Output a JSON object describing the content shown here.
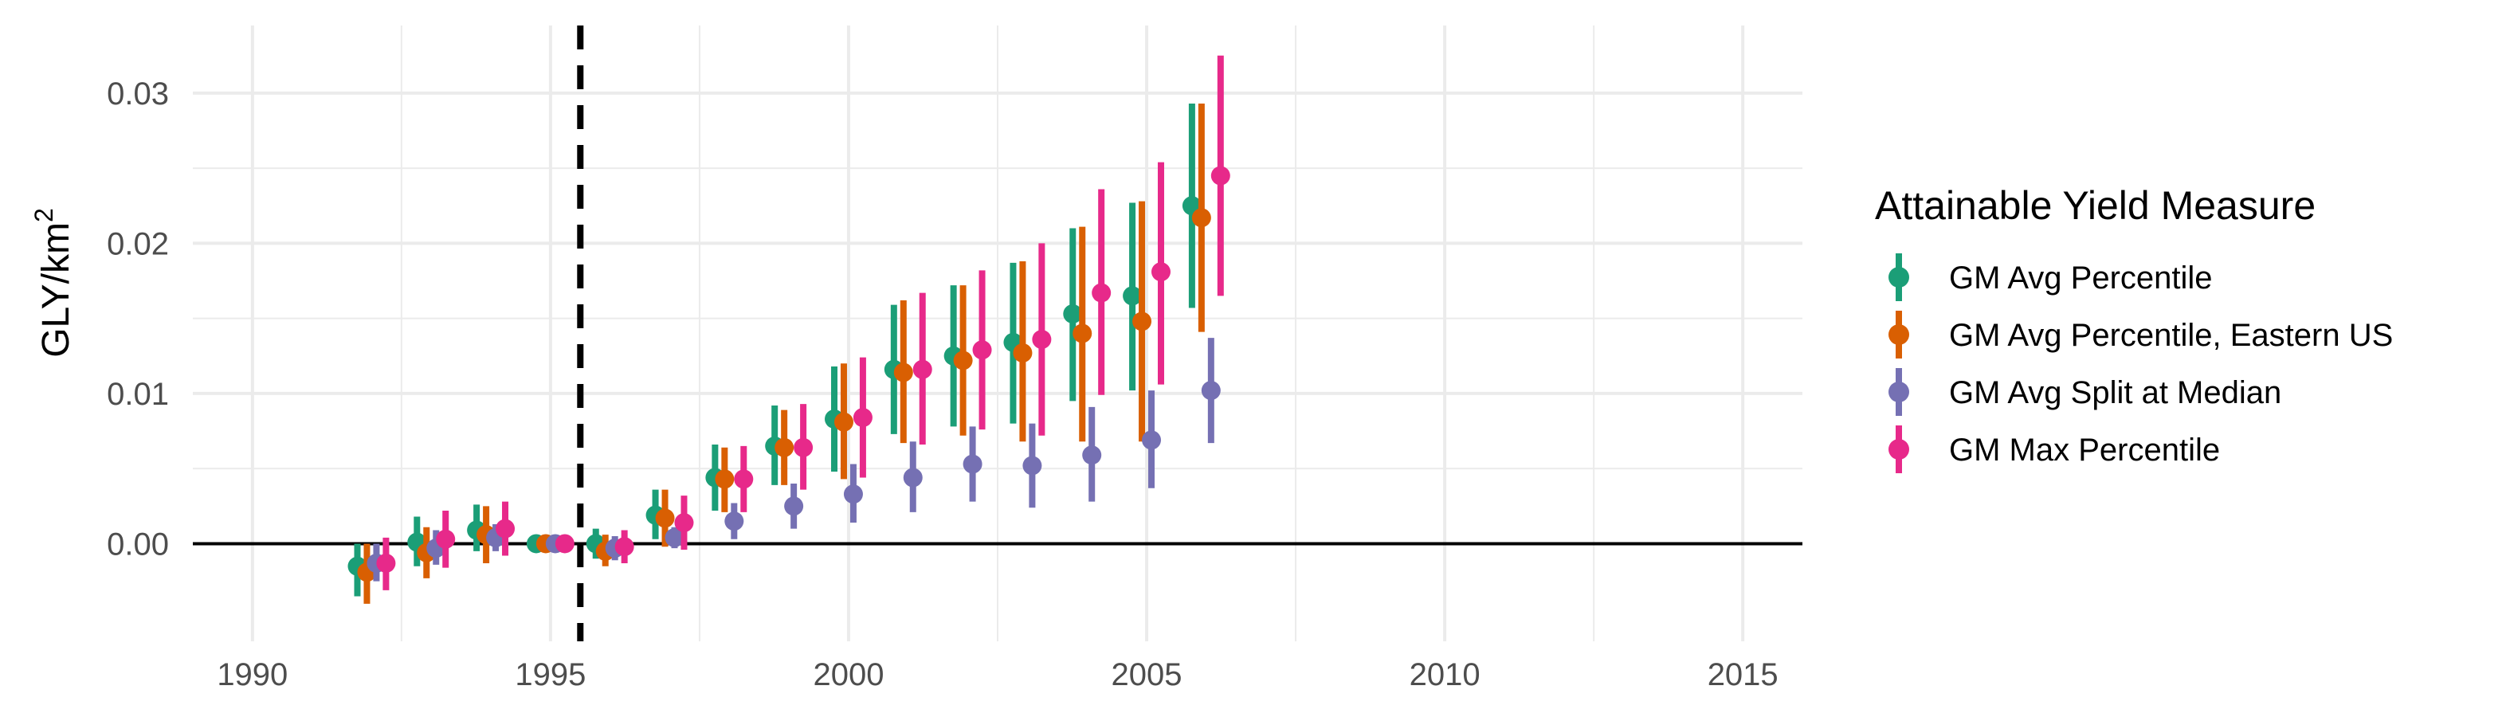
{
  "chart_data": {
    "type": "scatter",
    "subtype": "point-range",
    "xlabel": "",
    "ylabel": "GLY/km",
    "ylabel_superscript": "2",
    "xlim": [
      1989,
      2016
    ],
    "ylim": [
      -0.0065,
      0.0345
    ],
    "x_ticks": [
      1990,
      1995,
      2000,
      2005,
      2010,
      2015
    ],
    "y_ticks": [
      0.0,
      0.01,
      0.02,
      0.03
    ],
    "y_tick_labels": [
      "0.00",
      "0.01",
      "0.02",
      "0.03"
    ],
    "grid": true,
    "reference_lines": {
      "horizontal_zero": 0,
      "vertical_dashed_x": 1995.5
    },
    "legend": {
      "title": "Attainable Yield Measure",
      "position": "right"
    },
    "dodge_offsets": [
      -0.24,
      -0.08,
      0.08,
      0.24
    ],
    "series": [
      {
        "name": "GM Avg Percentile",
        "color": "#1B9E77",
        "points": [
          {
            "x": 1992,
            "y": -0.0015,
            "lo": -0.0035,
            "hi": 0.0
          },
          {
            "x": 1993,
            "y": 0.0001,
            "lo": -0.0015,
            "hi": 0.0018
          },
          {
            "x": 1994,
            "y": 0.0009,
            "lo": -0.0005,
            "hi": 0.0026
          },
          {
            "x": 1995,
            "y": 0.0,
            "lo": 0.0,
            "hi": 0.0
          },
          {
            "x": 1996,
            "y": 0.0,
            "lo": -0.001,
            "hi": 0.001
          },
          {
            "x": 1997,
            "y": 0.0019,
            "lo": 0.0003,
            "hi": 0.0036
          },
          {
            "x": 1998,
            "y": 0.0044,
            "lo": 0.0022,
            "hi": 0.0066
          },
          {
            "x": 1999,
            "y": 0.0065,
            "lo": 0.0039,
            "hi": 0.0092
          },
          {
            "x": 2000,
            "y": 0.0083,
            "lo": 0.0048,
            "hi": 0.0118
          },
          {
            "x": 2001,
            "y": 0.0116,
            "lo": 0.0073,
            "hi": 0.0159
          },
          {
            "x": 2002,
            "y": 0.0125,
            "lo": 0.0078,
            "hi": 0.0172
          },
          {
            "x": 2003,
            "y": 0.0134,
            "lo": 0.008,
            "hi": 0.0187
          },
          {
            "x": 2004,
            "y": 0.0153,
            "lo": 0.0095,
            "hi": 0.021
          },
          {
            "x": 2005,
            "y": 0.0165,
            "lo": 0.0102,
            "hi": 0.0227
          },
          {
            "x": 2006,
            "y": 0.0225,
            "lo": 0.0157,
            "hi": 0.0293
          }
        ]
      },
      {
        "name": "GM Avg Percentile, Eastern US",
        "color": "#D95F02",
        "points": [
          {
            "x": 1992,
            "y": -0.0019,
            "lo": -0.004,
            "hi": 0.0
          },
          {
            "x": 1993,
            "y": -0.0006,
            "lo": -0.0023,
            "hi": 0.0011
          },
          {
            "x": 1994,
            "y": 0.0006,
            "lo": -0.0013,
            "hi": 0.0025
          },
          {
            "x": 1995,
            "y": 0.0,
            "lo": 0.0,
            "hi": 0.0
          },
          {
            "x": 1996,
            "y": -0.0005,
            "lo": -0.0015,
            "hi": 0.0006
          },
          {
            "x": 1997,
            "y": 0.0017,
            "lo": -0.0002,
            "hi": 0.0036
          },
          {
            "x": 1998,
            "y": 0.0043,
            "lo": 0.0021,
            "hi": 0.0064
          },
          {
            "x": 1999,
            "y": 0.0064,
            "lo": 0.0039,
            "hi": 0.0089
          },
          {
            "x": 2000,
            "y": 0.0081,
            "lo": 0.0043,
            "hi": 0.012
          },
          {
            "x": 2001,
            "y": 0.0114,
            "lo": 0.0067,
            "hi": 0.0162
          },
          {
            "x": 2002,
            "y": 0.0122,
            "lo": 0.0072,
            "hi": 0.0172
          },
          {
            "x": 2003,
            "y": 0.0127,
            "lo": 0.0068,
            "hi": 0.0188
          },
          {
            "x": 2004,
            "y": 0.014,
            "lo": 0.0068,
            "hi": 0.0211
          },
          {
            "x": 2005,
            "y": 0.0148,
            "lo": 0.0068,
            "hi": 0.0228
          },
          {
            "x": 2006,
            "y": 0.0217,
            "lo": 0.0141,
            "hi": 0.0293
          }
        ]
      },
      {
        "name": "GM Avg Split at Median",
        "color": "#7570B3",
        "points": [
          {
            "x": 1992,
            "y": -0.0013,
            "lo": -0.0025,
            "hi": 0.0
          },
          {
            "x": 1993,
            "y": -0.0003,
            "lo": -0.0014,
            "hi": 0.0009
          },
          {
            "x": 1994,
            "y": 0.0004,
            "lo": -0.0005,
            "hi": 0.0013
          },
          {
            "x": 1995,
            "y": 0.0,
            "lo": 0.0,
            "hi": 0.0
          },
          {
            "x": 1996,
            "y": -0.0003,
            "lo": -0.0011,
            "hi": 0.0005
          },
          {
            "x": 1997,
            "y": 0.0004,
            "lo": -0.0003,
            "hi": 0.0011
          },
          {
            "x": 1998,
            "y": 0.0015,
            "lo": 0.0003,
            "hi": 0.0027
          },
          {
            "x": 1999,
            "y": 0.0025,
            "lo": 0.001,
            "hi": 0.004
          },
          {
            "x": 2000,
            "y": 0.0033,
            "lo": 0.0014,
            "hi": 0.0053
          },
          {
            "x": 2001,
            "y": 0.0044,
            "lo": 0.0021,
            "hi": 0.0068
          },
          {
            "x": 2002,
            "y": 0.0053,
            "lo": 0.0028,
            "hi": 0.0078
          },
          {
            "x": 2003,
            "y": 0.0052,
            "lo": 0.0024,
            "hi": 0.008
          },
          {
            "x": 2004,
            "y": 0.0059,
            "lo": 0.0028,
            "hi": 0.0091
          },
          {
            "x": 2005,
            "y": 0.0069,
            "lo": 0.0037,
            "hi": 0.0102
          },
          {
            "x": 2006,
            "y": 0.0102,
            "lo": 0.0067,
            "hi": 0.0137
          }
        ]
      },
      {
        "name": "GM Max Percentile",
        "color": "#E7298A",
        "points": [
          {
            "x": 1992,
            "y": -0.0013,
            "lo": -0.0031,
            "hi": 0.0004
          },
          {
            "x": 1993,
            "y": 0.0003,
            "lo": -0.0016,
            "hi": 0.0022
          },
          {
            "x": 1994,
            "y": 0.001,
            "lo": -0.0008,
            "hi": 0.0028
          },
          {
            "x": 1995,
            "y": 0.0,
            "lo": 0.0,
            "hi": 0.0
          },
          {
            "x": 1996,
            "y": -0.0002,
            "lo": -0.0013,
            "hi": 0.0009
          },
          {
            "x": 1997,
            "y": 0.0014,
            "lo": -0.0004,
            "hi": 0.0032
          },
          {
            "x": 1998,
            "y": 0.0043,
            "lo": 0.0021,
            "hi": 0.0065
          },
          {
            "x": 1999,
            "y": 0.0064,
            "lo": 0.0036,
            "hi": 0.0093
          },
          {
            "x": 2000,
            "y": 0.0084,
            "lo": 0.0044,
            "hi": 0.0124
          },
          {
            "x": 2001,
            "y": 0.0116,
            "lo": 0.0066,
            "hi": 0.0167
          },
          {
            "x": 2002,
            "y": 0.0129,
            "lo": 0.0076,
            "hi": 0.0182
          },
          {
            "x": 2003,
            "y": 0.0136,
            "lo": 0.0072,
            "hi": 0.02
          },
          {
            "x": 2004,
            "y": 0.0167,
            "lo": 0.0099,
            "hi": 0.0236
          },
          {
            "x": 2005,
            "y": 0.0181,
            "lo": 0.0106,
            "hi": 0.0254
          },
          {
            "x": 2006,
            "y": 0.0245,
            "lo": 0.0165,
            "hi": 0.0325
          }
        ]
      }
    ]
  }
}
